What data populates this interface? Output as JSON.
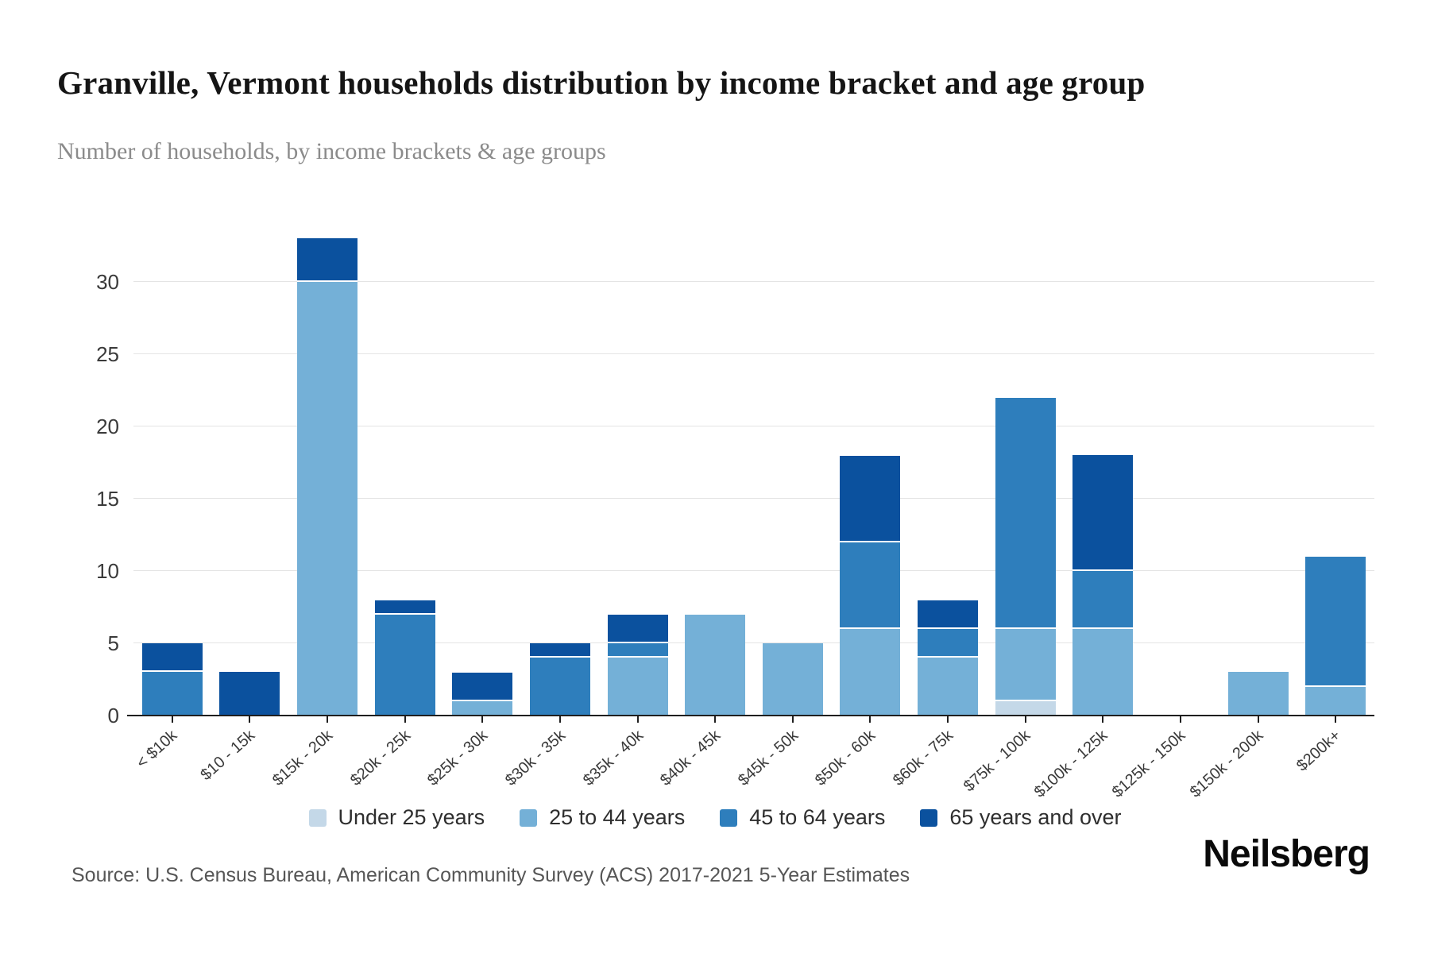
{
  "header": {
    "title": "Granville, Vermont households distribution by income bracket and age group",
    "subtitle": "Number of households, by income brackets & age groups"
  },
  "footer": {
    "source": "Source: U.S. Census Bureau, American Community Survey (ACS) 2017-2021 5-Year Estimates",
    "brand": "Neilsberg"
  },
  "chart_data": {
    "type": "bar",
    "stacked": true,
    "title": "Granville, Vermont households distribution by income bracket and age group",
    "subtitle": "Number of households, by income brackets & age groups",
    "xlabel": "",
    "ylabel": "Number of households",
    "ylim": [
      0,
      35
    ],
    "yticks": [
      0,
      5,
      10,
      15,
      20,
      25,
      30
    ],
    "grid": "horizontal",
    "legend_position": "bottom",
    "categories": [
      "< $10k",
      "$10 - 15k",
      "$15k - 20k",
      "$20k - 25k",
      "$25k - 30k",
      "$30k - 35k",
      "$35k - 40k",
      "$40k - 45k",
      "$45k - 50k",
      "$50k - 60k",
      "$60k - 75k",
      "$75k - 100k",
      "$100k - 125k",
      "$125k - 150k",
      "$150k - 200k",
      "$200k+"
    ],
    "series": [
      {
        "name": "Under 25 years",
        "color": "#c4d8e8",
        "values": [
          0,
          0,
          0,
          0,
          0,
          0,
          0,
          0,
          0,
          0,
          0,
          1,
          0,
          0,
          0,
          0
        ]
      },
      {
        "name": "25 to 44 years",
        "color": "#74b0d7",
        "values": [
          0,
          0,
          30,
          0,
          1,
          0,
          4,
          7,
          5,
          6,
          4,
          5,
          6,
          0,
          3,
          2
        ]
      },
      {
        "name": "45 to 64 years",
        "color": "#2e7ebc",
        "values": [
          3,
          0,
          0,
          7,
          0,
          4,
          1,
          0,
          0,
          6,
          2,
          16,
          4,
          0,
          0,
          9
        ]
      },
      {
        "name": "65 years and over",
        "color": "#0b519e",
        "values": [
          2,
          3,
          3,
          1,
          2,
          1,
          2,
          0,
          0,
          6,
          2,
          0,
          8,
          0,
          0,
          0
        ]
      }
    ],
    "totals": [
      5,
      3,
      33,
      8,
      3,
      5,
      7,
      7,
      5,
      18,
      8,
      22,
      18,
      0,
      3,
      11
    ]
  },
  "colors": {
    "grid": "#e4e4e4",
    "axis": "#1f1f1f"
  }
}
